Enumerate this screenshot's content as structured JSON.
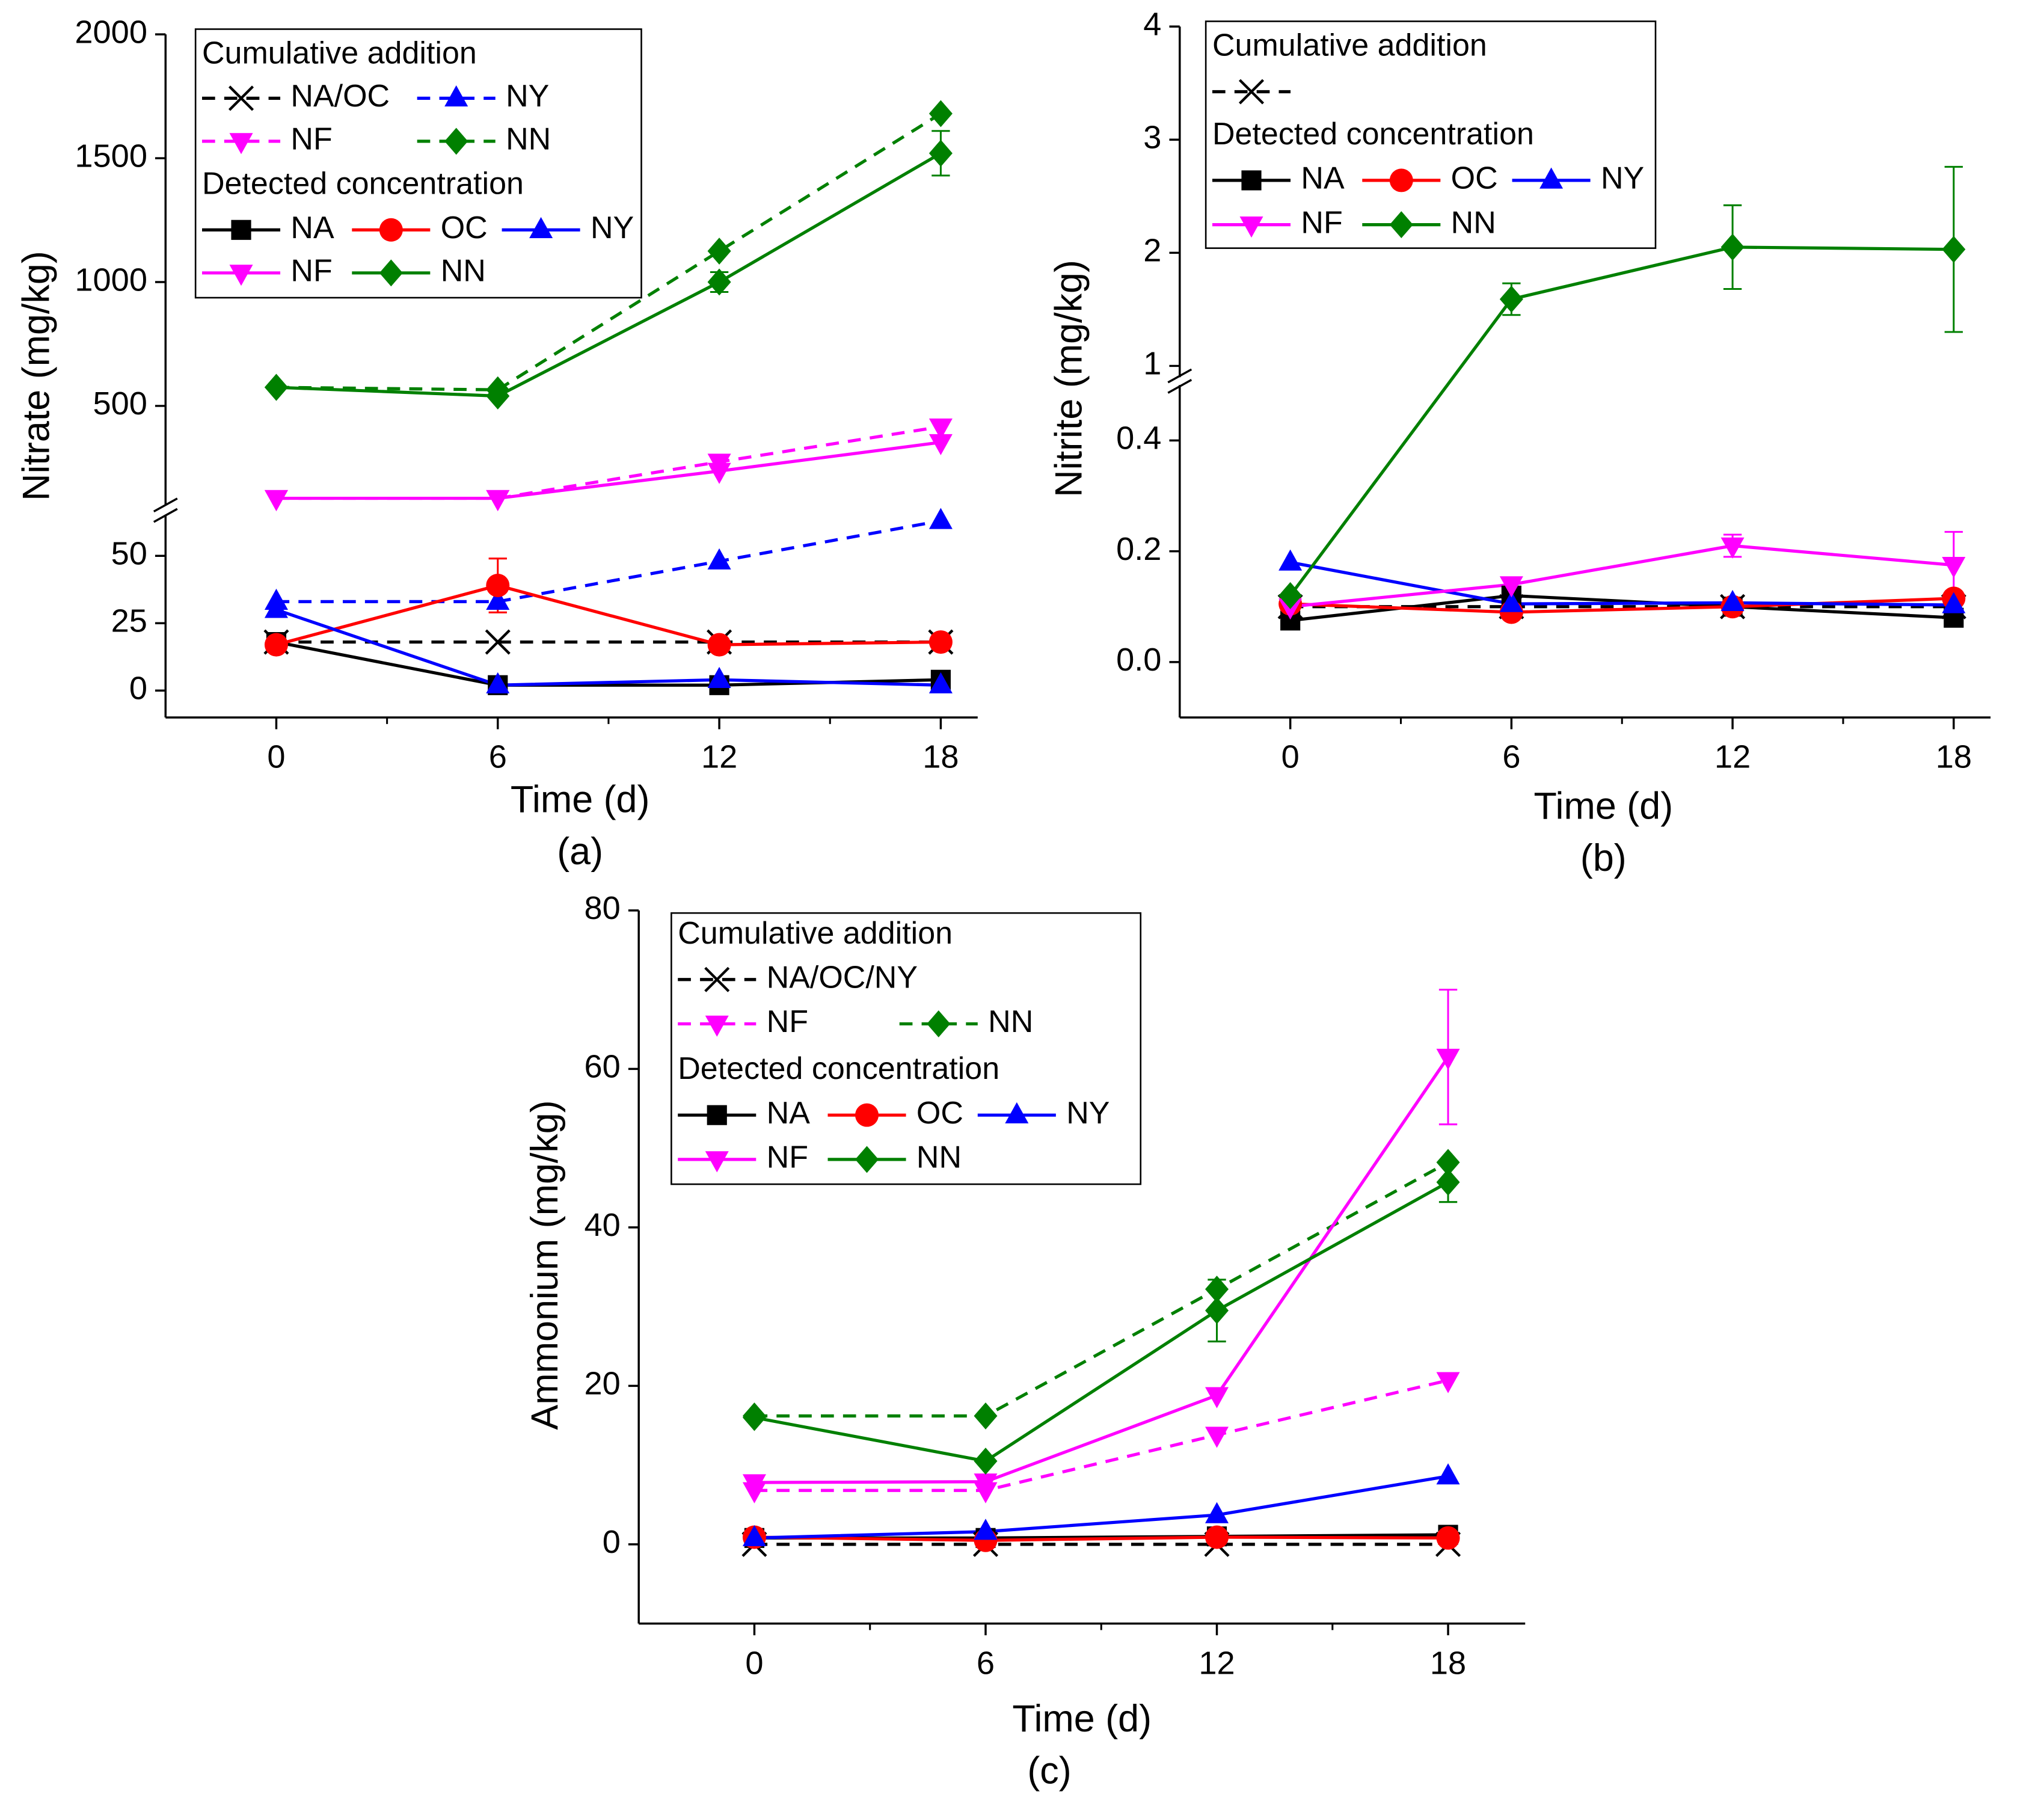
{
  "chart_data": [
    {
      "type": "line",
      "caption": "(a)",
      "xlabel": "Time (d)",
      "ylabel": "Nitrate (mg/kg)",
      "x": [
        0,
        6,
        12,
        18
      ],
      "xlim": [
        -3,
        19
      ],
      "xticks": [
        0,
        6,
        12,
        18
      ],
      "xminor": [
        3,
        9,
        15
      ],
      "y_segments": [
        {
          "ylim": [
            -10,
            65
          ],
          "yticks": [
            0,
            25,
            50
          ]
        },
        {
          "ylim": [
            100,
            2000
          ],
          "yticks": [
            500,
            1000,
            1500,
            2000
          ]
        }
      ],
      "legend_groups": [
        "Cumulative addition",
        "Detected concentration"
      ],
      "series": [
        {
          "name": "NA/OC",
          "color": "#000000",
          "marker": "x",
          "linestyle": "dashed",
          "legend_group": 0,
          "values": [
            18,
            18,
            18,
            18
          ]
        },
        {
          "name": "NY",
          "color": "#0000ff",
          "marker": "triangle",
          "linestyle": "dashed",
          "legend_group": 0,
          "values": [
            33,
            33,
            48,
            63
          ]
        },
        {
          "name": "NF",
          "color": "#ff00ff",
          "marker": "triangle-down",
          "linestyle": "dashed",
          "legend_group": 0,
          "values": [
            127,
            127,
            274,
            416
          ]
        },
        {
          "name": "NN",
          "color": "#008000",
          "marker": "diamond",
          "linestyle": "dashed",
          "legend_group": 0,
          "values": [
            575,
            565,
            1125,
            1680
          ]
        },
        {
          "name": "NA",
          "color": "#000000",
          "marker": "square",
          "linestyle": "solid",
          "legend_group": 1,
          "values": [
            18,
            2,
            2,
            4
          ]
        },
        {
          "name": "OC",
          "color": "#ff0000",
          "marker": "circle",
          "linestyle": "solid",
          "legend_group": 1,
          "values": [
            17,
            39,
            17,
            18
          ],
          "errors": [
            null,
            10,
            null,
            null
          ]
        },
        {
          "name": "NY",
          "color": "#0000ff",
          "marker": "triangle",
          "linestyle": "solid",
          "legend_group": 1,
          "values": [
            30,
            2,
            4,
            2
          ]
        },
        {
          "name": "NF",
          "color": "#ff00ff",
          "marker": "triangle-down",
          "linestyle": "solid",
          "legend_group": 1,
          "values": [
            127,
            127,
            237,
            353
          ]
        },
        {
          "name": "NN",
          "color": "#008000",
          "marker": "diamond",
          "linestyle": "solid",
          "legend_group": 1,
          "values": [
            575,
            540,
            1000,
            1520
          ],
          "errors": [
            null,
            null,
            40,
            90
          ]
        }
      ]
    },
    {
      "type": "line",
      "caption": "(b)",
      "xlabel": "Time (d)",
      "ylabel": "Nitrite (mg/kg)",
      "x": [
        0,
        6,
        12,
        18
      ],
      "xlim": [
        -3,
        19
      ],
      "xticks": [
        0,
        6,
        12,
        18
      ],
      "xminor": [
        3,
        9,
        15
      ],
      "y_segments": [
        {
          "ylim": [
            -0.1,
            0.5
          ],
          "yticks": [
            {
              "value": 0,
              "label": "0.0"
            },
            0.2,
            0.4
          ]
        },
        {
          "ylim": [
            0.9,
            4
          ],
          "yticks": [
            1,
            2,
            3,
            4
          ]
        }
      ],
      "legend_groups": [
        "Cumulative addition",
        "Detected concentration"
      ],
      "series": [
        {
          "color": "#000000",
          "marker": "x",
          "linestyle": "dashed",
          "legend_group": 0,
          "values": [
            0.1,
            0.1,
            0.1,
            0.1
          ]
        },
        {
          "name": "NA",
          "color": "#000000",
          "marker": "square",
          "linestyle": "solid",
          "legend_group": 1,
          "values": [
            0.075,
            0.12,
            0.1,
            0.08
          ]
        },
        {
          "name": "OC",
          "color": "#ff0000",
          "marker": "circle",
          "linestyle": "solid",
          "legend_group": 1,
          "values": [
            0.105,
            0.09,
            0.1,
            0.115
          ]
        },
        {
          "name": "NY",
          "color": "#0000ff",
          "marker": "triangle",
          "linestyle": "solid",
          "legend_group": 1,
          "values": [
            0.18,
            0.105,
            0.107,
            0.103
          ]
        },
        {
          "name": "NF",
          "color": "#ff00ff",
          "marker": "triangle-down",
          "linestyle": "solid",
          "legend_group": 1,
          "values": [
            0.1,
            0.14,
            0.21,
            0.175
          ],
          "errors": [
            null,
            null,
            0.02,
            0.06
          ]
        },
        {
          "name": "NN",
          "color": "#008000",
          "marker": "diamond",
          "linestyle": "solid",
          "legend_group": 1,
          "values": [
            0.12,
            1.59,
            2.05,
            2.03
          ],
          "errors": [
            null,
            0.14,
            0.37,
            0.73
          ]
        }
      ]
    },
    {
      "type": "line",
      "caption": "(c)",
      "xlabel": "Time (d)",
      "ylabel": "Ammonium (mg/kg)",
      "x": [
        0,
        6,
        12,
        18
      ],
      "xlim": [
        -3,
        20
      ],
      "xticks": [
        0,
        6,
        12,
        18
      ],
      "xminor": [
        3,
        9,
        15
      ],
      "y_segments": [
        {
          "ylim": [
            -10,
            80
          ],
          "yticks": [
            0,
            20,
            40,
            60,
            80
          ]
        }
      ],
      "legend_groups": [
        "Cumulative addition",
        "Detected concentration"
      ],
      "series": [
        {
          "name": "NA/OC/NY",
          "color": "#000000",
          "marker": "x",
          "linestyle": "dashed",
          "legend_group": 0,
          "values": [
            0,
            0,
            0,
            0
          ]
        },
        {
          "name": "NF",
          "color": "#ff00ff",
          "marker": "triangle-down",
          "linestyle": "dashed",
          "legend_group": 0,
          "values": [
            6.8,
            6.8,
            13.8,
            20.7
          ]
        },
        {
          "name": "NN",
          "color": "#008000",
          "marker": "diamond",
          "linestyle": "dashed",
          "legend_group": 0,
          "values": [
            16.2,
            16.2,
            32.2,
            48.2
          ]
        },
        {
          "name": "NA",
          "color": "#000000",
          "marker": "square",
          "linestyle": "solid",
          "legend_group": 1,
          "values": [
            0.8,
            0.8,
            1,
            1.2
          ]
        },
        {
          "name": "OC",
          "color": "#ff0000",
          "marker": "circle",
          "linestyle": "solid",
          "legend_group": 1,
          "values": [
            0.9,
            0.5,
            0.9,
            0.8
          ]
        },
        {
          "name": "NY",
          "color": "#0000ff",
          "marker": "triangle",
          "linestyle": "solid",
          "legend_group": 1,
          "values": [
            0.8,
            1.6,
            3.7,
            8.6
          ]
        },
        {
          "name": "NF",
          "color": "#ff00ff",
          "marker": "triangle-down",
          "linestyle": "solid",
          "legend_group": 1,
          "values": [
            7.8,
            7.9,
            18.8,
            61.5
          ],
          "errors": [
            null,
            null,
            null,
            8.5
          ]
        },
        {
          "name": "NN",
          "color": "#008000",
          "marker": "diamond",
          "linestyle": "solid",
          "legend_group": 1,
          "values": [
            16,
            10.5,
            29.5,
            45.7
          ],
          "errors": [
            null,
            null,
            3.9,
            2.5
          ]
        }
      ]
    }
  ]
}
